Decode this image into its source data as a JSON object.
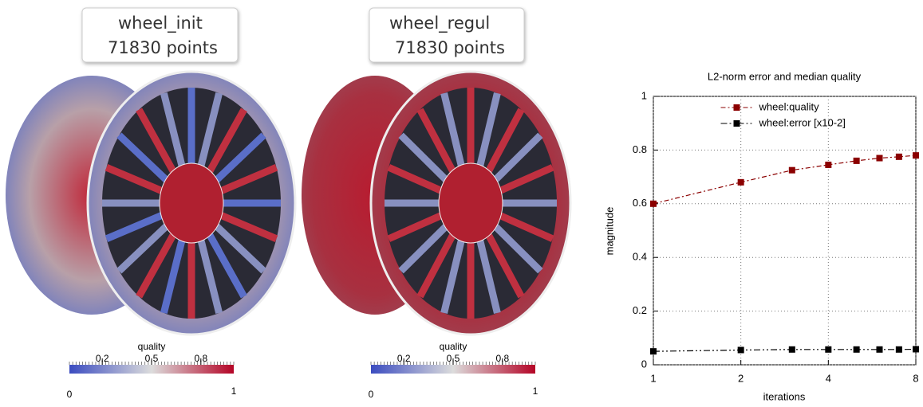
{
  "panels": [
    {
      "name": "wheel_init",
      "points": "71830 points",
      "colorbar": {
        "label": "quality",
        "ticks": [
          0.2,
          0.5,
          0.8
        ],
        "min": 0,
        "max": 1
      }
    },
    {
      "name": "wheel_regul",
      "points": "71830 points",
      "colorbar": {
        "label": "quality",
        "ticks": [
          0.2,
          0.5,
          0.8
        ],
        "min": 0,
        "max": 1
      }
    }
  ],
  "chart_data": {
    "type": "line",
    "title": "L2-norm error and median quality",
    "x_label": "iterations",
    "y_label": "magnitude",
    "x": [
      1,
      2,
      3,
      4,
      5,
      6,
      7,
      8
    ],
    "series": [
      {
        "name": "wheel:quality",
        "color": "#8b0000",
        "values": [
          0.6,
          0.68,
          0.725,
          0.745,
          0.76,
          0.77,
          0.775,
          0.78
        ]
      },
      {
        "name": "wheel:error [x10-2]",
        "color": "#000000",
        "values": [
          0.05,
          0.055,
          0.057,
          0.057,
          0.057,
          0.057,
          0.057,
          0.058
        ]
      }
    ],
    "xlim": [
      1,
      8
    ],
    "xticks": [
      1,
      2,
      4,
      8
    ],
    "xscale": "log",
    "ylim": [
      0,
      1
    ],
    "yticks": [
      0,
      0.2,
      0.4,
      0.6,
      0.8,
      1
    ],
    "grid": true,
    "legend": "upper-center"
  }
}
